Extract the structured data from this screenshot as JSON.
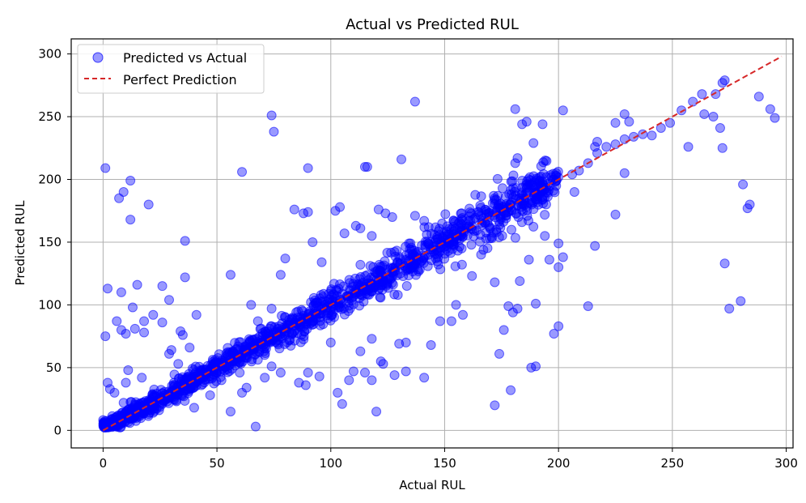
{
  "chart_data": {
    "type": "scatter",
    "title": "Actual vs Predicted RUL",
    "xlabel": "Actual RUL",
    "ylabel": "Predicted RUL",
    "xlim": [
      -14,
      303
    ],
    "ylim": [
      -14,
      312
    ],
    "xticks": [
      0,
      50,
      100,
      150,
      200,
      250,
      300
    ],
    "yticks": [
      0,
      50,
      100,
      150,
      200,
      250,
      300
    ],
    "grid": true,
    "legend": "top-left",
    "legend_entries": [
      {
        "label": "Predicted vs Actual",
        "kind": "marker",
        "color": "#0000ff"
      },
      {
        "label": "Perfect Prediction",
        "kind": "dashed-line",
        "color": "#d62728"
      }
    ],
    "series": [
      {
        "name": "Predicted vs Actual",
        "color": "#0000ff",
        "points": [
          [
            1,
            209
          ],
          [
            9,
            190
          ],
          [
            12,
            199
          ],
          [
            7,
            185
          ],
          [
            12,
            168
          ],
          [
            20,
            180
          ],
          [
            2,
            113
          ],
          [
            15,
            116
          ],
          [
            13,
            98
          ],
          [
            8,
            110
          ],
          [
            26,
            115
          ],
          [
            36,
            151
          ],
          [
            36,
            122
          ],
          [
            29,
            104
          ],
          [
            41,
            92
          ],
          [
            22,
            92
          ],
          [
            18,
            87
          ],
          [
            6,
            87
          ],
          [
            1,
            75
          ],
          [
            8,
            80
          ],
          [
            14,
            81
          ],
          [
            10,
            77
          ],
          [
            18,
            78
          ],
          [
            26,
            86
          ],
          [
            34,
            79
          ],
          [
            35,
            76
          ],
          [
            38,
            66
          ],
          [
            30,
            64
          ],
          [
            29,
            61
          ],
          [
            33,
            53
          ],
          [
            17,
            42
          ],
          [
            11,
            48
          ],
          [
            10,
            38
          ],
          [
            2,
            38
          ],
          [
            3,
            33
          ],
          [
            5,
            30
          ],
          [
            9,
            22
          ],
          [
            16,
            16
          ],
          [
            20,
            13
          ],
          [
            22,
            14
          ],
          [
            26,
            21
          ],
          [
            32,
            24
          ],
          [
            40,
            18
          ],
          [
            47,
            28
          ],
          [
            56,
            15
          ],
          [
            52,
            40
          ],
          [
            60,
            46
          ],
          [
            61,
            30
          ],
          [
            63,
            34
          ],
          [
            67,
            3
          ],
          [
            71,
            42
          ],
          [
            74,
            51
          ],
          [
            78,
            46
          ],
          [
            86,
            38
          ],
          [
            89,
            36
          ],
          [
            90,
            46
          ],
          [
            95,
            43
          ],
          [
            100,
            70
          ],
          [
            103,
            30
          ],
          [
            105,
            21
          ],
          [
            108,
            40
          ],
          [
            115,
            46
          ],
          [
            118,
            40
          ],
          [
            120,
            15
          ],
          [
            123,
            53
          ],
          [
            128,
            44
          ],
          [
            133,
            47
          ],
          [
            141,
            42
          ],
          [
            144,
            68
          ],
          [
            148,
            87
          ],
          [
            153,
            87
          ],
          [
            130,
            69
          ],
          [
            133,
            70
          ],
          [
            110,
            47
          ],
          [
            113,
            63
          ],
          [
            118,
            73
          ],
          [
            122,
            55
          ],
          [
            65,
            100
          ],
          [
            68,
            87
          ],
          [
            74,
            97
          ],
          [
            78,
            124
          ],
          [
            80,
            137
          ],
          [
            84,
            176
          ],
          [
            88,
            173
          ],
          [
            90,
            174
          ],
          [
            90,
            209
          ],
          [
            92,
            150
          ],
          [
            96,
            134
          ],
          [
            97,
            100
          ],
          [
            102,
            175
          ],
          [
            104,
            178
          ],
          [
            106,
            157
          ],
          [
            111,
            163
          ],
          [
            113,
            161
          ],
          [
            113,
            132
          ],
          [
            115,
            210
          ],
          [
            116,
            210
          ],
          [
            118,
            155
          ],
          [
            121,
            176
          ],
          [
            124,
            173
          ],
          [
            127,
            170
          ],
          [
            131,
            216
          ],
          [
            137,
            262
          ],
          [
            135,
            149
          ],
          [
            137,
            171
          ],
          [
            141,
            167
          ],
          [
            143,
            162
          ],
          [
            74,
            251
          ],
          [
            75,
            238
          ],
          [
            61,
            206
          ],
          [
            56,
            124
          ],
          [
            155,
            100
          ],
          [
            158,
            92
          ],
          [
            162,
            123
          ],
          [
            166,
            140
          ],
          [
            172,
            118
          ],
          [
            174,
            61
          ],
          [
            176,
            80
          ],
          [
            178,
            99
          ],
          [
            179,
            32
          ],
          [
            180,
            94
          ],
          [
            182,
            97
          ],
          [
            183,
            119
          ],
          [
            172,
            20
          ],
          [
            181,
            256
          ],
          [
            184,
            244
          ],
          [
            186,
            246
          ],
          [
            182,
            217
          ],
          [
            181,
            213
          ],
          [
            189,
            229
          ],
          [
            193,
            244
          ],
          [
            199,
            205
          ],
          [
            200,
            83
          ],
          [
            198,
            77
          ],
          [
            200,
            149
          ],
          [
            202,
            255
          ],
          [
            202,
            138
          ],
          [
            200,
            130
          ],
          [
            190,
            101
          ],
          [
            188,
            50
          ],
          [
            190,
            51
          ],
          [
            196,
            136
          ],
          [
            194,
            155
          ],
          [
            187,
            136
          ],
          [
            207,
            190
          ],
          [
            216,
            147
          ],
          [
            213,
            99
          ],
          [
            217,
            230
          ],
          [
            216,
            226
          ],
          [
            225,
            172
          ],
          [
            225,
            245
          ],
          [
            229,
            252
          ],
          [
            231,
            246
          ],
          [
            229,
            205
          ],
          [
            257,
            226
          ],
          [
            264,
            252
          ],
          [
            268,
            250
          ],
          [
            271,
            241
          ],
          [
            272,
            225
          ],
          [
            273,
            133
          ],
          [
            275,
            97
          ],
          [
            280,
            103
          ],
          [
            281,
            196
          ],
          [
            283,
            177
          ],
          [
            284,
            180
          ],
          [
            288,
            266
          ],
          [
            293,
            256
          ],
          [
            295,
            249
          ],
          [
            272,
            277
          ],
          [
            273,
            279
          ],
          [
            269,
            268
          ],
          [
            263,
            268
          ],
          [
            259,
            262
          ],
          [
            254,
            255
          ],
          [
            249,
            245
          ],
          [
            245,
            241
          ],
          [
            241,
            235
          ],
          [
            237,
            236
          ],
          [
            233,
            234
          ],
          [
            229,
            232
          ],
          [
            225,
            228
          ],
          [
            221,
            226
          ],
          [
            217,
            221
          ],
          [
            213,
            213
          ],
          [
            209,
            207
          ],
          [
            206,
            204
          ]
        ],
        "band": {
          "x_range": [
            0,
            200
          ],
          "density": "high",
          "spread_note": "dense cluster along the perfect-prediction line"
        }
      },
      {
        "name": "Perfect Prediction",
        "color": "#d62728",
        "style": "dashed",
        "x": [
          0,
          298
        ],
        "y": [
          0,
          298
        ]
      }
    ]
  }
}
